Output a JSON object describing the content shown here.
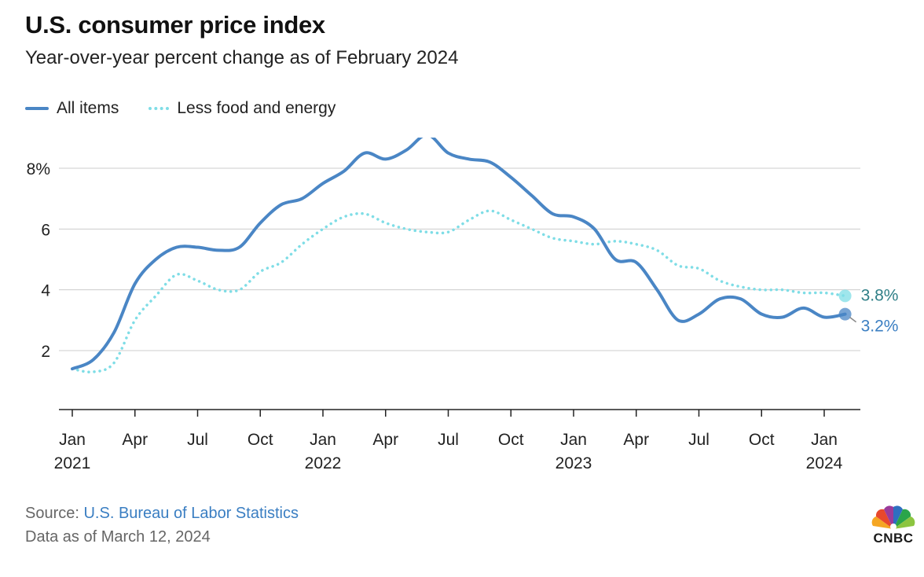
{
  "title": "U.S. consumer price index",
  "subtitle": "Year-over-year percent change as of February 2024",
  "legend": [
    {
      "label": "All items",
      "color": "#4a86c5",
      "style": "solid"
    },
    {
      "label": "Less food and energy",
      "color": "#7fdde6",
      "style": "dotted"
    }
  ],
  "source": {
    "prefix": "Source: ",
    "name": "U.S. Bureau of Labor Statistics"
  },
  "as_of": "Data as of March 12, 2024",
  "logo": {
    "text": "CNBC",
    "icon": "peacock-icon"
  },
  "chart_data": {
    "type": "line",
    "title": "U.S. consumer price index",
    "ylabel": "",
    "xlabel": "",
    "ylim": [
      0,
      9.5
    ],
    "grid": true,
    "y_ticks": [
      {
        "value": 8,
        "label": "8%"
      },
      {
        "value": 6,
        "label": "6"
      },
      {
        "value": 4,
        "label": "4"
      },
      {
        "value": 2,
        "label": "2"
      }
    ],
    "x_ticks": [
      {
        "index": 0,
        "label": "Jan",
        "year": "2021"
      },
      {
        "index": 3,
        "label": "Apr",
        "year": ""
      },
      {
        "index": 6,
        "label": "Jul",
        "year": ""
      },
      {
        "index": 9,
        "label": "Oct",
        "year": ""
      },
      {
        "index": 12,
        "label": "Jan",
        "year": "2022"
      },
      {
        "index": 15,
        "label": "Apr",
        "year": ""
      },
      {
        "index": 18,
        "label": "Jul",
        "year": ""
      },
      {
        "index": 21,
        "label": "Oct",
        "year": ""
      },
      {
        "index": 24,
        "label": "Jan",
        "year": "2023"
      },
      {
        "index": 27,
        "label": "Apr",
        "year": ""
      },
      {
        "index": 30,
        "label": "Jul",
        "year": ""
      },
      {
        "index": 33,
        "label": "Oct",
        "year": ""
      },
      {
        "index": 36,
        "label": "Jan",
        "year": "2024"
      }
    ],
    "x_range": [
      -0.5,
      37.7
    ],
    "x": [
      "2021-01",
      "2021-02",
      "2021-03",
      "2021-04",
      "2021-05",
      "2021-06",
      "2021-07",
      "2021-08",
      "2021-09",
      "2021-10",
      "2021-11",
      "2021-12",
      "2022-01",
      "2022-02",
      "2022-03",
      "2022-04",
      "2022-05",
      "2022-06",
      "2022-07",
      "2022-08",
      "2022-09",
      "2022-10",
      "2022-11",
      "2022-12",
      "2023-01",
      "2023-02",
      "2023-03",
      "2023-04",
      "2023-05",
      "2023-06",
      "2023-07",
      "2023-08",
      "2023-09",
      "2023-10",
      "2023-11",
      "2023-12",
      "2024-01",
      "2024-02"
    ],
    "series": [
      {
        "name": "All items",
        "color": "#4a86c5",
        "style": "solid",
        "values": [
          1.4,
          1.7,
          2.6,
          4.2,
          5.0,
          5.4,
          5.4,
          5.3,
          5.4,
          6.2,
          6.8,
          7.0,
          7.5,
          7.9,
          8.5,
          8.3,
          8.6,
          9.1,
          8.5,
          8.3,
          8.2,
          7.7,
          7.1,
          6.5,
          6.4,
          6.0,
          5.0,
          4.9,
          4.0,
          3.0,
          3.2,
          3.7,
          3.7,
          3.2,
          3.1,
          3.4,
          3.1,
          3.2
        ],
        "end_label": "3.2%",
        "end_label_color": "#3a7ec2"
      },
      {
        "name": "Less food and energy",
        "color": "#7fdde6",
        "style": "dotted",
        "values": [
          1.4,
          1.3,
          1.6,
          3.0,
          3.8,
          4.5,
          4.3,
          4.0,
          4.0,
          4.6,
          4.9,
          5.5,
          6.0,
          6.4,
          6.5,
          6.2,
          6.0,
          5.9,
          5.9,
          6.3,
          6.6,
          6.3,
          6.0,
          5.7,
          5.6,
          5.5,
          5.6,
          5.5,
          5.3,
          4.8,
          4.7,
          4.3,
          4.1,
          4.0,
          4.0,
          3.9,
          3.9,
          3.8
        ],
        "end_label": "3.8%",
        "end_label_color": "#2f7f87"
      }
    ]
  }
}
